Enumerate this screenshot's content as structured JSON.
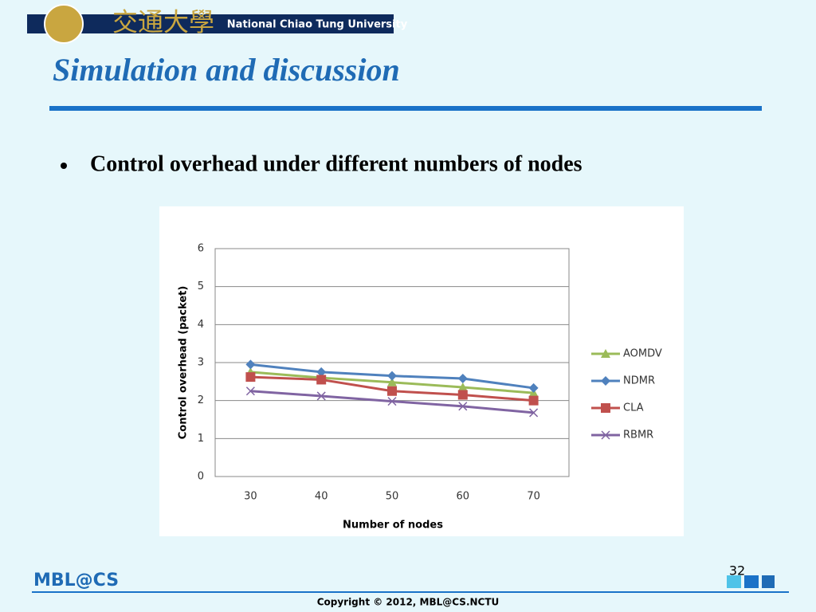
{
  "header": {
    "university_cn": "交通大學",
    "university_en": "National Chiao Tung University"
  },
  "title": "Simulation and discussion",
  "bullet": "Control overhead under different numbers of nodes",
  "chart_data": {
    "type": "line",
    "x_label": "Number of nodes",
    "y_label": "Control overhead (packet)",
    "categories": [
      "30",
      "40",
      "50",
      "60",
      "70"
    ],
    "series": [
      {
        "name": "AOMDV",
        "color": "#9bbb59",
        "values": [
          2.75,
          2.6,
          2.48,
          2.35,
          2.2
        ]
      },
      {
        "name": "NDMR",
        "color": "#4f81bd",
        "values": [
          2.95,
          2.75,
          2.65,
          2.58,
          2.33
        ]
      },
      {
        "name": "CLA",
        "color": "#c0504d",
        "values": [
          2.62,
          2.55,
          2.25,
          2.15,
          2.0
        ]
      },
      {
        "name": "RBMR",
        "color": "#8064a2",
        "values": [
          2.25,
          2.12,
          1.98,
          1.85,
          1.68
        ]
      }
    ],
    "ylim": [
      0,
      6
    ],
    "yticks": [
      0,
      1,
      2,
      3,
      4,
      5,
      6
    ],
    "grid": true,
    "legend": "right"
  },
  "footer": {
    "logo": "MBL@CS",
    "page_number": "32",
    "copyright": "Copyright © 2012, MBL@CS.NCTU"
  }
}
